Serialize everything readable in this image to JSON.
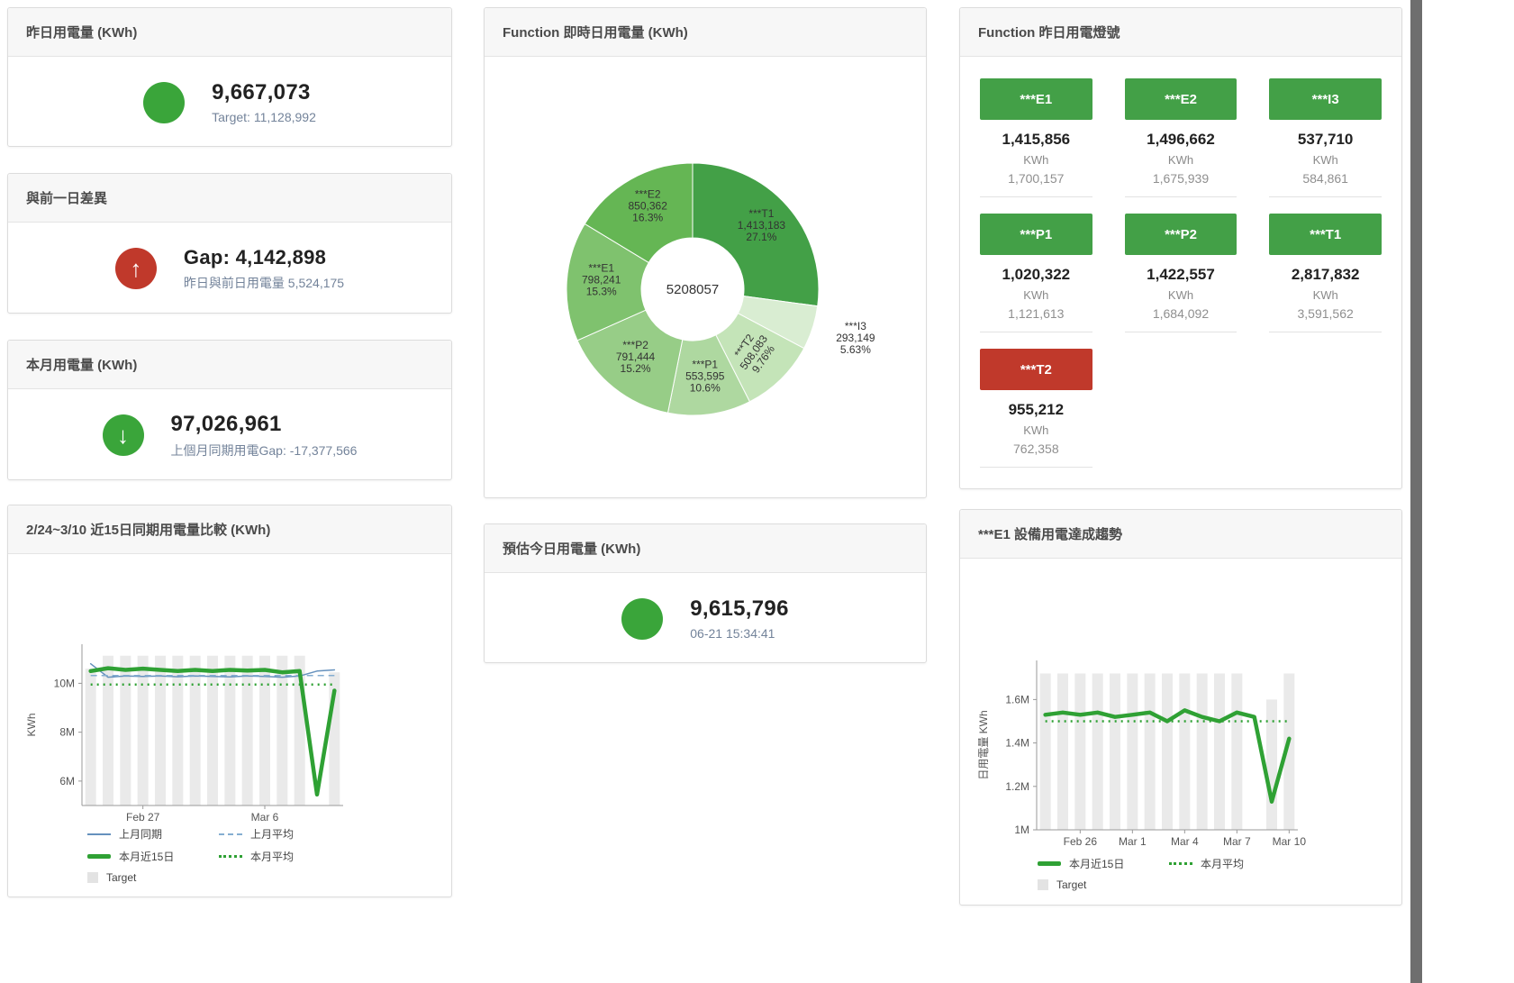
{
  "colors": {
    "green": "#3aa53a",
    "tile_green": "#43a047",
    "red": "#c0392b",
    "line_green": "#2fa134",
    "line_blue": "#6591bd",
    "line_blue_light": "#85aed1",
    "bar_gray": "#eaeaea"
  },
  "cards": {
    "yesterday": {
      "title": "昨日用電量 (KWh)",
      "value": "9,667,073",
      "subtitle": "Target: 11,128,992"
    },
    "gap": {
      "title": "與前一日差異",
      "value": "Gap: 4,142,898",
      "subtitle": "昨日與前日用電量 5,524,175",
      "icon_glyph": "↑"
    },
    "month": {
      "title": "本月用電量 (KWh)",
      "value": "97,026,961",
      "subtitle": "上個月同期用電Gap: -17,377,566",
      "icon_glyph": "↓"
    },
    "estimate": {
      "title": "預估今日用電量 (KWh)",
      "value": "9,615,796",
      "subtitle": "06-21 15:34:41"
    }
  },
  "lights": {
    "title": "Function 昨日用電燈號",
    "items": [
      {
        "name": "***E1",
        "value": "1,415,856",
        "unit": "KWh",
        "target": "1,700,157",
        "status": "green"
      },
      {
        "name": "***E2",
        "value": "1,496,662",
        "unit": "KWh",
        "target": "1,675,939",
        "status": "green"
      },
      {
        "name": "***I3",
        "value": "537,710",
        "unit": "KWh",
        "target": "584,861",
        "status": "green"
      },
      {
        "name": "***P1",
        "value": "1,020,322",
        "unit": "KWh",
        "target": "1,121,613",
        "status": "green"
      },
      {
        "name": "***P2",
        "value": "1,422,557",
        "unit": "KWh",
        "target": "1,684,092",
        "status": "green"
      },
      {
        "name": "***T1",
        "value": "2,817,832",
        "unit": "KWh",
        "target": "3,591,562",
        "status": "green"
      },
      {
        "name": "***T2",
        "value": "955,212",
        "unit": "KWh",
        "target": "762,358",
        "status": "red"
      }
    ]
  },
  "chart_data": [
    {
      "type": "pie",
      "title": "Function 即時日用電量 (KWh)",
      "center_label": "5208057",
      "legend_position": "none",
      "series": [
        {
          "name": "***T1",
          "value": 1413183,
          "value_label": "1,413,183",
          "pct": "27.1%",
          "color": "#43a047"
        },
        {
          "name": "***I3",
          "value": 293149,
          "value_label": "293,149",
          "pct": "5.63%",
          "color": "#d9edd2",
          "label_r": 190
        },
        {
          "name": "***T2",
          "value": 508083,
          "value_label": "508,083",
          "pct": "9.76%",
          "color": "#c4e4b8",
          "label_rotate": -55
        },
        {
          "name": "***P1",
          "value": 553595,
          "value_label": "553,595",
          "pct": "10.6%",
          "color": "#aed8a0"
        },
        {
          "name": "***P2",
          "value": 791444,
          "value_label": "791,444",
          "pct": "15.2%",
          "color": "#97cd87"
        },
        {
          "name": "***E1",
          "value": 798241,
          "value_label": "798,241",
          "pct": "15.3%",
          "color": "#7fc26e"
        },
        {
          "name": "***E2",
          "value": 850362,
          "value_label": "850,362",
          "pct": "16.3%",
          "color": "#65b654"
        }
      ]
    },
    {
      "type": "line",
      "title": "2/24~3/10 近15日同期用電量比較 (KWh)",
      "ylabel": "KWh",
      "x_count": 15,
      "ylim": [
        5000000,
        11600000
      ],
      "grid": false,
      "yticks": [
        {
          "v": 6000000,
          "label": "6M"
        },
        {
          "v": 8000000,
          "label": "8M"
        },
        {
          "v": 10000000,
          "label": "10M"
        }
      ],
      "xticks": [
        {
          "i": 3,
          "label": "Feb 27"
        },
        {
          "i": 10,
          "label": "Mar 6"
        }
      ],
      "bar_series": {
        "name": "Target",
        "color": "#eaeaea",
        "values": [
          10600000,
          11130000,
          11130000,
          11130000,
          11130000,
          11130000,
          11130000,
          11130000,
          11130000,
          11130000,
          11130000,
          11130000,
          11130000,
          null,
          10450000
        ]
      },
      "series": [
        {
          "name": "上月同期",
          "color": "#6591bd",
          "width": 1.5,
          "dash": "",
          "values": [
            10800000,
            10250000,
            10300000,
            10280000,
            10300000,
            10270000,
            10300000,
            10280000,
            10260000,
            10300000,
            10280000,
            10250000,
            10300000,
            10500000,
            10550000
          ]
        },
        {
          "name": "上月平均",
          "color": "#85aed1",
          "width": 1.5,
          "dash": "7 5",
          "const_value": 10320000
        },
        {
          "name": "本月平均",
          "color": "#2fa134",
          "width": 2.5,
          "dash": "2 5",
          "const_value": 9950000
        },
        {
          "name": "本月近15日",
          "color": "#2fa134",
          "width": 4.5,
          "dash": "",
          "values": [
            10500000,
            10620000,
            10550000,
            10600000,
            10550000,
            10500000,
            10550000,
            10500000,
            10550000,
            10520000,
            10550000,
            10450000,
            10500000,
            5450000,
            9700000
          ]
        }
      ],
      "legend_position": "bottom",
      "legend": [
        {
          "label": "上月同期",
          "swatch": "thin",
          "color": "#6591bd"
        },
        {
          "label": "上月平均",
          "swatch": "dashed",
          "color": "#85aed1"
        },
        {
          "label": "本月近15日",
          "swatch": "thick",
          "color": "#2fa134"
        },
        {
          "label": "本月平均",
          "swatch": "dotted",
          "color": "#2fa134"
        },
        {
          "label": "Target",
          "swatch": "square",
          "color": "#e3e3e3"
        }
      ]
    },
    {
      "type": "line",
      "title": "***E1 設備用電達成趨勢",
      "ylabel": "日用電量 KWh",
      "x_count": 15,
      "ylim": [
        1000000,
        1780000
      ],
      "grid": false,
      "yticks": [
        {
          "v": 1000000,
          "label": "1M"
        },
        {
          "v": 1200000,
          "label": "1.2M"
        },
        {
          "v": 1400000,
          "label": "1.4M"
        },
        {
          "v": 1600000,
          "label": "1.6M"
        }
      ],
      "xticks": [
        {
          "i": 2,
          "label": "Feb 26"
        },
        {
          "i": 5,
          "label": "Mar 1"
        },
        {
          "i": 8,
          "label": "Mar 4"
        },
        {
          "i": 11,
          "label": "Mar 7"
        },
        {
          "i": 14,
          "label": "Mar 10"
        }
      ],
      "bar_series": {
        "name": "Target",
        "color": "#eaeaea",
        "values": [
          1720000,
          1720000,
          1720000,
          1720000,
          1720000,
          1720000,
          1720000,
          1720000,
          1720000,
          1720000,
          1720000,
          1720000,
          null,
          1600000,
          1720000
        ]
      },
      "series": [
        {
          "name": "本月平均",
          "color": "#2fa134",
          "width": 2.5,
          "dash": "2 5",
          "const_value": 1500000
        },
        {
          "name": "本月近15日",
          "color": "#2fa134",
          "width": 4.5,
          "dash": "",
          "values": [
            1530000,
            1540000,
            1530000,
            1540000,
            1520000,
            1530000,
            1540000,
            1500000,
            1550000,
            1520000,
            1500000,
            1540000,
            1520000,
            1130000,
            1420000
          ]
        }
      ],
      "legend_position": "bottom",
      "legend": [
        {
          "label": "本月近15日",
          "swatch": "thick",
          "color": "#2fa134"
        },
        {
          "label": "本月平均",
          "swatch": "dotted",
          "color": "#2fa134"
        },
        {
          "label": "Target",
          "swatch": "square",
          "color": "#e3e3e3"
        }
      ]
    }
  ]
}
